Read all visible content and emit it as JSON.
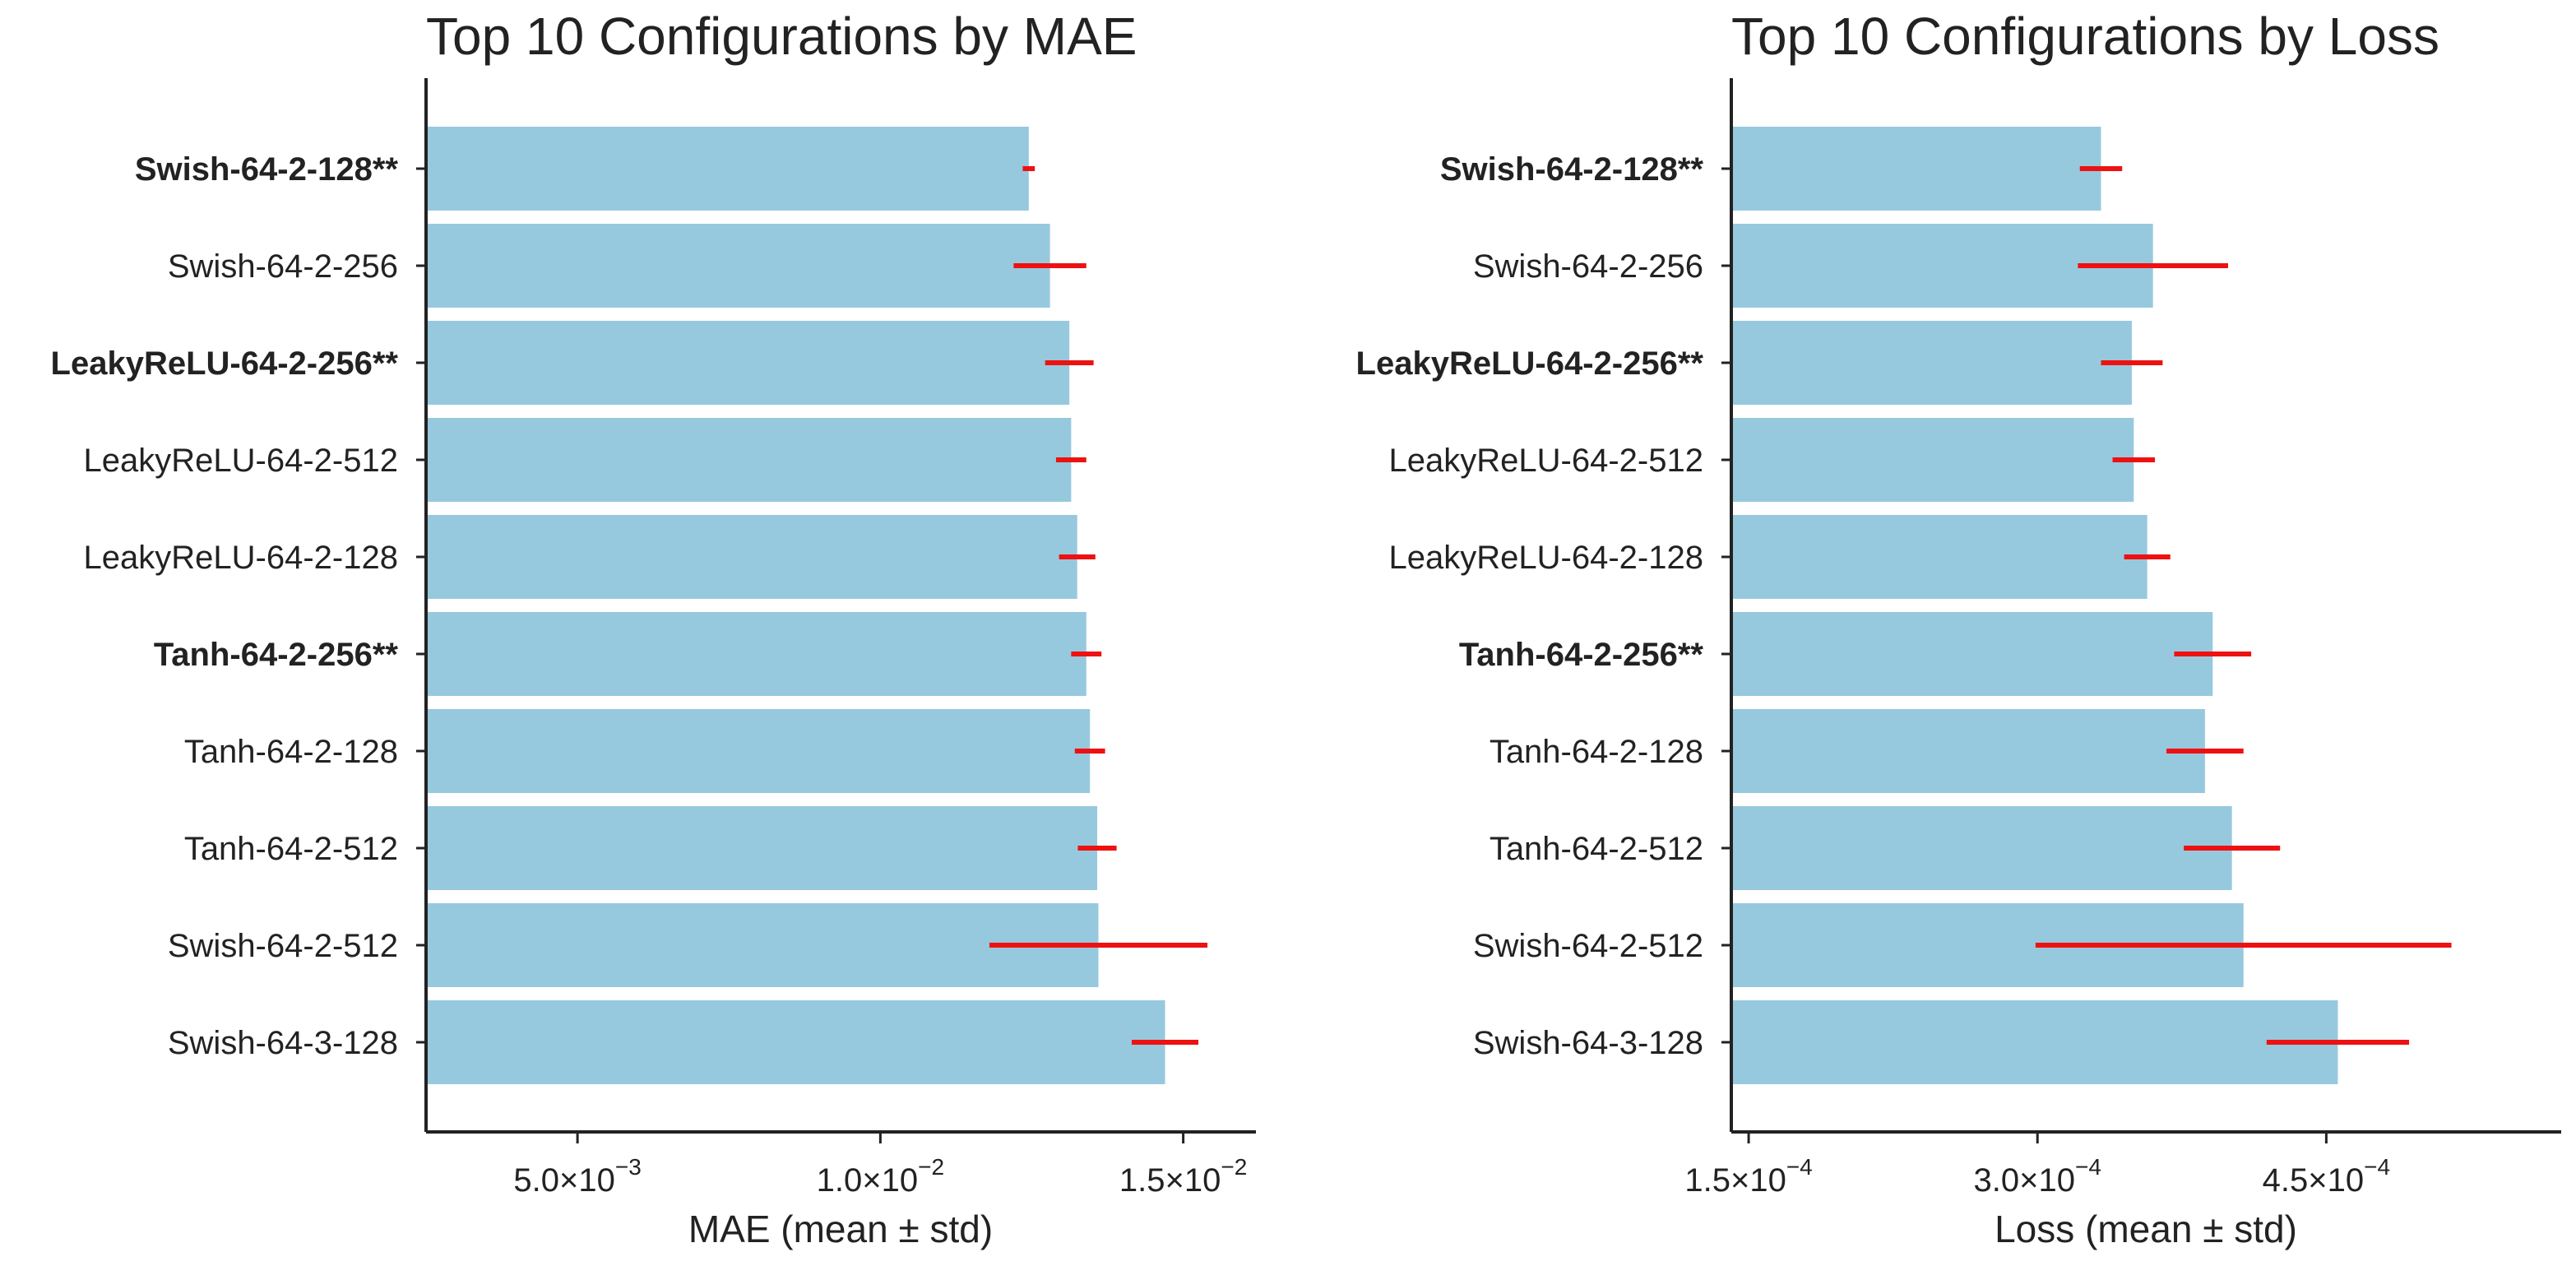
{
  "chart_data": [
    {
      "type": "bar",
      "orientation": "horizontal",
      "title": "Top 10 Configurations by MAE",
      "xlabel": "MAE (mean ± std)",
      "ylabel": "",
      "xlim": [
        0.0025,
        0.0162
      ],
      "categories": [
        "Swish-64-2-128**",
        "Swish-64-2-256",
        "LeakyReLU-64-2-256**",
        "LeakyReLU-64-2-512",
        "LeakyReLU-64-2-128",
        "Tanh-64-2-256**",
        "Tanh-64-2-128",
        "Tanh-64-2-512",
        "Swish-64-2-512",
        "Swish-64-3-128"
      ],
      "bold": [
        true,
        false,
        true,
        false,
        false,
        true,
        false,
        false,
        false,
        false
      ],
      "values": [
        0.01245,
        0.0128,
        0.01312,
        0.01315,
        0.01325,
        0.0134,
        0.01346,
        0.01358,
        0.0136,
        0.0147
      ],
      "errors": [
        0.0001,
        0.0006,
        0.0004,
        0.00025,
        0.0003,
        0.00025,
        0.00025,
        0.00032,
        0.0018,
        0.00055
      ],
      "ticks": [
        {
          "value": 0.005,
          "mantissa": "5.0",
          "exp": "−3"
        },
        {
          "value": 0.01,
          "mantissa": "1.0",
          "exp": "−2"
        },
        {
          "value": 0.015,
          "mantissa": "1.5",
          "exp": "−2"
        }
      ],
      "bar_color": "#96c9de",
      "error_color": "#ee1111"
    },
    {
      "type": "bar",
      "orientation": "horizontal",
      "title": "Top 10 Configurations by Loss",
      "xlabel": "Loss (mean ± std)",
      "ylabel": "",
      "xlim": [
        0.000141,
        0.000572
      ],
      "categories": [
        "Swish-64-2-128**",
        "Swish-64-2-256",
        "LeakyReLU-64-2-256**",
        "LeakyReLU-64-2-512",
        "LeakyReLU-64-2-128",
        "Tanh-64-2-256**",
        "Tanh-64-2-128",
        "Tanh-64-2-512",
        "Swish-64-2-512",
        "Swish-64-3-128"
      ],
      "bold": [
        true,
        false,
        true,
        false,
        false,
        true,
        false,
        false,
        false,
        false
      ],
      "values": [
        0.000333,
        0.00036,
        0.000349,
        0.00035,
        0.000357,
        0.000391,
        0.000387,
        0.000401,
        0.000407,
        0.000456
      ],
      "errors": [
        1.1e-05,
        3.9e-05,
        1.6e-05,
        1.1e-05,
        1.2e-05,
        2e-05,
        2e-05,
        2.5e-05,
        0.000108,
        3.7e-05
      ],
      "ticks": [
        {
          "value": 0.00015,
          "mantissa": "1.5",
          "exp": "−4"
        },
        {
          "value": 0.0003,
          "mantissa": "3.0",
          "exp": "−4"
        },
        {
          "value": 0.00045,
          "mantissa": "4.5",
          "exp": "−4"
        }
      ],
      "bar_color": "#96c9de",
      "error_color": "#ee1111"
    }
  ]
}
